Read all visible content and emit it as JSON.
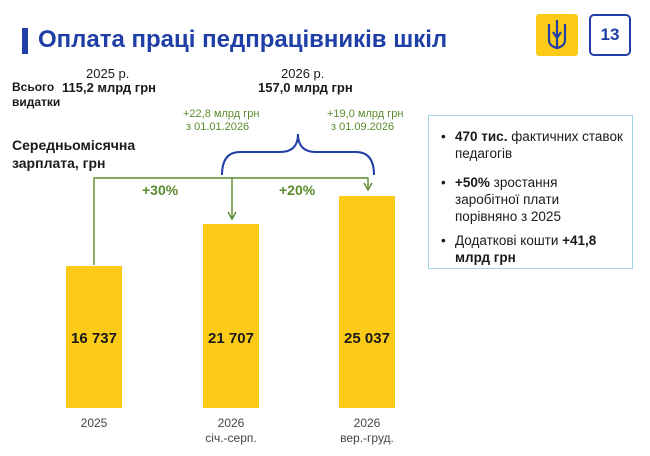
{
  "header": {
    "title": "Оплата праці педпрацівників шкіл",
    "page_number": "13",
    "accent_color": "#1f3fa6",
    "emblem_icon": "trident-emblem-icon"
  },
  "expenses": {
    "label": "Всього видатки",
    "year_2025": "2025 р.",
    "value_2025": "115,2 млрд грн",
    "year_2026": "2026 р.",
    "value_2026": "157,0 млрд грн"
  },
  "increments": [
    {
      "amount": "+22,8 млрд грн",
      "date": "з 01.01.2026"
    },
    {
      "amount": "+19,0 млрд грн",
      "date": "з 01.09.2026"
    }
  ],
  "growth": [
    "+30%",
    "+20%"
  ],
  "chart_data": {
    "type": "bar",
    "title": "Середньомісячна зарплата, грн",
    "categories": [
      "2025",
      "2026 січ.-серп.",
      "2026 вер.-груд."
    ],
    "category_lines": [
      [
        "2025"
      ],
      [
        "2026",
        "січ.-серп."
      ],
      [
        "2026",
        "вер.-груд."
      ]
    ],
    "values": [
      16737,
      21707,
      25037
    ],
    "value_labels": [
      "16 737",
      "21 707",
      "25 037"
    ],
    "bar_color": "#fccb17",
    "ylim": [
      0,
      26000
    ]
  },
  "info_box": {
    "items": [
      {
        "bold": "470 тис.",
        "rest": " фактичних ставок педагогів"
      },
      {
        "bold": "+50%",
        "rest": " зростання заробітної плати порівняно з 2025"
      },
      {
        "rest_first": "Додаткові кошти ",
        "bold": "+41,8 млрд грн"
      }
    ]
  }
}
